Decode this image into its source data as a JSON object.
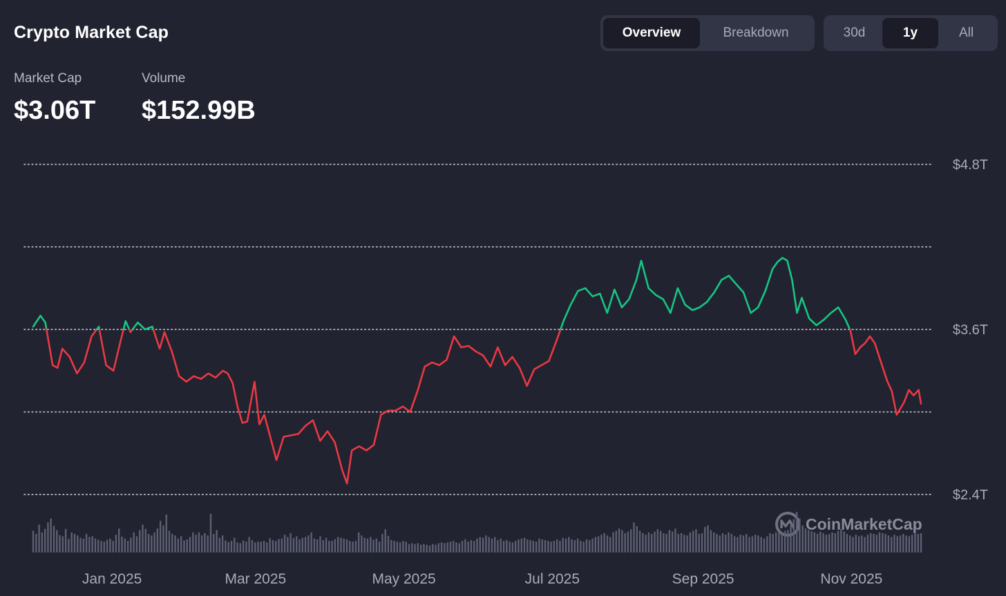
{
  "header": {
    "title": "Crypto Market Cap",
    "view_tabs": [
      {
        "label": "Overview",
        "active": true
      },
      {
        "label": "Breakdown",
        "active": false
      }
    ],
    "range_tabs": [
      {
        "label": "30d",
        "active": false
      },
      {
        "label": "1y",
        "active": true
      },
      {
        "label": "All",
        "active": false
      }
    ]
  },
  "stats": {
    "market_cap": {
      "label": "Market Cap",
      "value": "$3.06T"
    },
    "volume": {
      "label": "Volume",
      "value": "$152.99B"
    }
  },
  "watermark": "CoinMarketCap",
  "colors": {
    "background": "#222330",
    "up": "#16c784",
    "down": "#ea3943",
    "volume_bar": "#5c6073",
    "grid": "#cfd1da"
  },
  "chart_data": {
    "type": "line",
    "title": "",
    "xlabel": "",
    "ylabel": "",
    "y_ticks": [
      {
        "value": 4.8,
        "label": "$4.8T"
      },
      {
        "value": 3.6,
        "label": "$3.6T"
      },
      {
        "value": 2.4,
        "label": "$2.4T"
      }
    ],
    "ylim": [
      2.4,
      4.8
    ],
    "grid": true,
    "x_ticks": [
      {
        "date": "2025-01-01",
        "label": "Jan 2025"
      },
      {
        "date": "2025-03-01",
        "label": "Mar 2025"
      },
      {
        "date": "2025-05-01",
        "label": "May 2025"
      },
      {
        "date": "2025-07-01",
        "label": "Jul 2025"
      },
      {
        "date": "2025-09-01",
        "label": "Sep 2025"
      },
      {
        "date": "2025-11-01",
        "label": "Nov 2025"
      }
    ],
    "xlim": [
      "2024-12-01",
      "2025-12-01"
    ],
    "baseline": 3.6,
    "baseline_note": "line colored green above baseline, red below",
    "series": [
      {
        "unit": "trillion USD",
        "points": [
          [
            "2024-12-01",
            3.62
          ],
          [
            "2024-12-04",
            3.7
          ],
          [
            "2024-12-06",
            3.65
          ],
          [
            "2024-12-09",
            3.34
          ],
          [
            "2024-12-11",
            3.32
          ],
          [
            "2024-12-13",
            3.46
          ],
          [
            "2024-12-16",
            3.4
          ],
          [
            "2024-12-19",
            3.28
          ],
          [
            "2024-12-22",
            3.36
          ],
          [
            "2024-12-25",
            3.55
          ],
          [
            "2024-12-28",
            3.62
          ],
          [
            "2024-12-31",
            3.34
          ],
          [
            "2025-01-03",
            3.3
          ],
          [
            "2025-01-06",
            3.52
          ],
          [
            "2025-01-08",
            3.66
          ],
          [
            "2025-01-10",
            3.58
          ],
          [
            "2025-01-13",
            3.65
          ],
          [
            "2025-01-16",
            3.6
          ],
          [
            "2025-01-19",
            3.62
          ],
          [
            "2025-01-22",
            3.46
          ],
          [
            "2025-01-24",
            3.58
          ],
          [
            "2025-01-27",
            3.44
          ],
          [
            "2025-01-30",
            3.26
          ],
          [
            "2025-02-02",
            3.22
          ],
          [
            "2025-02-05",
            3.26
          ],
          [
            "2025-02-08",
            3.24
          ],
          [
            "2025-02-11",
            3.28
          ],
          [
            "2025-02-14",
            3.25
          ],
          [
            "2025-02-17",
            3.3
          ],
          [
            "2025-02-19",
            3.28
          ],
          [
            "2025-02-21",
            3.21
          ],
          [
            "2025-02-23",
            3.04
          ],
          [
            "2025-02-25",
            2.92
          ],
          [
            "2025-02-27",
            2.93
          ],
          [
            "2025-03-02",
            3.22
          ],
          [
            "2025-03-04",
            2.91
          ],
          [
            "2025-03-06",
            2.98
          ],
          [
            "2025-03-08",
            2.85
          ],
          [
            "2025-03-11",
            2.65
          ],
          [
            "2025-03-14",
            2.82
          ],
          [
            "2025-03-17",
            2.83
          ],
          [
            "2025-03-20",
            2.84
          ],
          [
            "2025-03-23",
            2.9
          ],
          [
            "2025-03-26",
            2.94
          ],
          [
            "2025-03-29",
            2.79
          ],
          [
            "2025-04-01",
            2.86
          ],
          [
            "2025-04-04",
            2.78
          ],
          [
            "2025-04-07",
            2.58
          ],
          [
            "2025-04-09",
            2.48
          ],
          [
            "2025-04-11",
            2.72
          ],
          [
            "2025-04-14",
            2.75
          ],
          [
            "2025-04-17",
            2.72
          ],
          [
            "2025-04-20",
            2.76
          ],
          [
            "2025-04-23",
            2.98
          ],
          [
            "2025-04-26",
            3.01
          ],
          [
            "2025-04-29",
            3.01
          ],
          [
            "2025-05-02",
            3.04
          ],
          [
            "2025-05-05",
            3.0
          ],
          [
            "2025-05-08",
            3.15
          ],
          [
            "2025-05-11",
            3.33
          ],
          [
            "2025-05-14",
            3.36
          ],
          [
            "2025-05-17",
            3.34
          ],
          [
            "2025-05-20",
            3.38
          ],
          [
            "2025-05-23",
            3.55
          ],
          [
            "2025-05-26",
            3.47
          ],
          [
            "2025-05-29",
            3.48
          ],
          [
            "2025-06-01",
            3.44
          ],
          [
            "2025-06-04",
            3.41
          ],
          [
            "2025-06-07",
            3.33
          ],
          [
            "2025-06-10",
            3.47
          ],
          [
            "2025-06-13",
            3.34
          ],
          [
            "2025-06-16",
            3.4
          ],
          [
            "2025-06-19",
            3.32
          ],
          [
            "2025-06-22",
            3.19
          ],
          [
            "2025-06-25",
            3.31
          ],
          [
            "2025-06-28",
            3.34
          ],
          [
            "2025-07-01",
            3.37
          ],
          [
            "2025-07-04",
            3.51
          ],
          [
            "2025-07-07",
            3.66
          ],
          [
            "2025-07-10",
            3.78
          ],
          [
            "2025-07-13",
            3.88
          ],
          [
            "2025-07-16",
            3.9
          ],
          [
            "2025-07-19",
            3.84
          ],
          [
            "2025-07-22",
            3.86
          ],
          [
            "2025-07-25",
            3.72
          ],
          [
            "2025-07-28",
            3.89
          ],
          [
            "2025-07-31",
            3.76
          ],
          [
            "2025-08-03",
            3.82
          ],
          [
            "2025-08-06",
            3.96
          ],
          [
            "2025-08-08",
            4.1
          ],
          [
            "2025-08-11",
            3.9
          ],
          [
            "2025-08-14",
            3.85
          ],
          [
            "2025-08-17",
            3.82
          ],
          [
            "2025-08-20",
            3.72
          ],
          [
            "2025-08-23",
            3.9
          ],
          [
            "2025-08-26",
            3.78
          ],
          [
            "2025-08-29",
            3.74
          ],
          [
            "2025-09-01",
            3.76
          ],
          [
            "2025-09-04",
            3.8
          ],
          [
            "2025-09-07",
            3.87
          ],
          [
            "2025-09-10",
            3.96
          ],
          [
            "2025-09-13",
            3.99
          ],
          [
            "2025-09-16",
            3.93
          ],
          [
            "2025-09-19",
            3.87
          ],
          [
            "2025-09-22",
            3.72
          ],
          [
            "2025-09-25",
            3.76
          ],
          [
            "2025-09-28",
            3.88
          ],
          [
            "2025-10-01",
            4.04
          ],
          [
            "2025-10-03",
            4.09
          ],
          [
            "2025-10-05",
            4.12
          ],
          [
            "2025-10-07",
            4.1
          ],
          [
            "2025-10-09",
            3.96
          ],
          [
            "2025-10-11",
            3.72
          ],
          [
            "2025-10-13",
            3.83
          ],
          [
            "2025-10-16",
            3.68
          ],
          [
            "2025-10-19",
            3.63
          ],
          [
            "2025-10-22",
            3.67
          ],
          [
            "2025-10-25",
            3.72
          ],
          [
            "2025-10-28",
            3.76
          ],
          [
            "2025-10-31",
            3.67
          ],
          [
            "2025-11-02",
            3.59
          ],
          [
            "2025-11-04",
            3.42
          ],
          [
            "2025-11-06",
            3.47
          ],
          [
            "2025-11-08",
            3.5
          ],
          [
            "2025-11-10",
            3.55
          ],
          [
            "2025-11-12",
            3.5
          ],
          [
            "2025-11-14",
            3.39
          ],
          [
            "2025-11-17",
            3.23
          ],
          [
            "2025-11-19",
            3.15
          ],
          [
            "2025-11-21",
            2.98
          ],
          [
            "2025-11-24",
            3.07
          ],
          [
            "2025-11-26",
            3.16
          ],
          [
            "2025-11-28",
            3.12
          ],
          [
            "2025-11-30",
            3.16
          ],
          [
            "2025-12-01",
            3.06
          ]
        ]
      }
    ],
    "volume_bars": [
      0.56,
      0.48,
      0.72,
      0.52,
      0.61,
      0.78,
      0.88,
      0.69,
      0.58,
      0.45,
      0.42,
      0.61,
      0.35,
      0.52,
      0.48,
      0.44,
      0.38,
      0.36,
      0.48,
      0.4,
      0.42,
      0.36,
      0.33,
      0.3,
      0.28,
      0.33,
      0.36,
      0.3,
      0.46,
      0.62,
      0.41,
      0.36,
      0.3,
      0.38,
      0.52,
      0.42,
      0.58,
      0.72,
      0.61,
      0.48,
      0.44,
      0.52,
      0.62,
      0.82,
      0.7,
      0.98,
      0.56,
      0.48,
      0.44,
      0.36,
      0.42,
      0.31,
      0.34,
      0.4,
      0.52,
      0.46,
      0.52,
      0.44,
      0.5,
      0.44,
      1.0,
      0.48,
      0.58,
      0.38,
      0.44,
      0.31,
      0.27,
      0.3,
      0.38,
      0.26,
      0.24,
      0.31,
      0.28,
      0.4,
      0.32,
      0.26,
      0.28,
      0.28,
      0.3,
      0.26,
      0.37,
      0.32,
      0.3,
      0.35,
      0.36,
      0.46,
      0.4,
      0.5,
      0.37,
      0.42,
      0.34,
      0.38,
      0.4,
      0.44,
      0.52,
      0.36,
      0.34,
      0.42,
      0.32,
      0.38,
      0.3,
      0.3,
      0.34,
      0.4,
      0.38,
      0.36,
      0.34,
      0.3,
      0.28,
      0.3,
      0.52,
      0.44,
      0.38,
      0.36,
      0.4,
      0.33,
      0.36,
      0.28,
      0.48,
      0.6,
      0.43,
      0.32,
      0.3,
      0.28,
      0.26,
      0.3,
      0.28,
      0.22,
      0.24,
      0.22,
      0.24,
      0.2,
      0.22,
      0.2,
      0.18,
      0.22,
      0.2,
      0.24,
      0.26,
      0.24,
      0.26,
      0.28,
      0.3,
      0.26,
      0.24,
      0.3,
      0.34,
      0.28,
      0.32,
      0.3,
      0.36,
      0.4,
      0.38,
      0.44,
      0.4,
      0.36,
      0.4,
      0.32,
      0.36,
      0.3,
      0.32,
      0.28,
      0.26,
      0.3,
      0.34,
      0.36,
      0.38,
      0.34,
      0.32,
      0.3,
      0.28,
      0.36,
      0.34,
      0.32,
      0.3,
      0.28,
      0.3,
      0.34,
      0.3,
      0.38,
      0.36,
      0.4,
      0.34,
      0.32,
      0.36,
      0.3,
      0.28,
      0.34,
      0.32,
      0.36,
      0.4,
      0.42,
      0.46,
      0.5,
      0.44,
      0.4,
      0.52,
      0.56,
      0.62,
      0.58,
      0.5,
      0.54,
      0.6,
      0.78,
      0.68,
      0.56,
      0.5,
      0.46,
      0.52,
      0.48,
      0.54,
      0.6,
      0.56,
      0.5,
      0.48,
      0.58,
      0.54,
      0.62,
      0.48,
      0.5,
      0.46,
      0.44,
      0.52,
      0.56,
      0.6,
      0.48,
      0.5,
      0.66,
      0.7,
      0.58,
      0.52,
      0.48,
      0.44,
      0.5,
      0.46,
      0.52,
      0.48,
      0.42,
      0.4,
      0.46,
      0.44,
      0.48,
      0.4,
      0.42,
      0.46,
      0.44,
      0.4,
      0.36,
      0.42,
      0.5,
      0.48,
      0.52,
      0.54,
      0.5,
      0.56,
      0.58,
      0.7,
      0.86,
      1.05,
      0.88,
      0.7,
      0.62,
      0.58,
      0.55,
      0.52,
      0.48,
      0.54,
      0.5,
      0.46,
      0.48,
      0.52,
      0.5,
      0.56,
      0.6,
      0.54,
      0.48,
      0.44,
      0.4,
      0.46,
      0.42,
      0.44,
      0.4,
      0.46,
      0.5,
      0.48,
      0.46,
      0.52,
      0.5,
      0.48,
      0.44,
      0.4,
      0.46,
      0.42,
      0.44,
      0.48,
      0.44,
      0.42,
      0.46,
      0.52,
      0.48,
      0.5
    ]
  }
}
